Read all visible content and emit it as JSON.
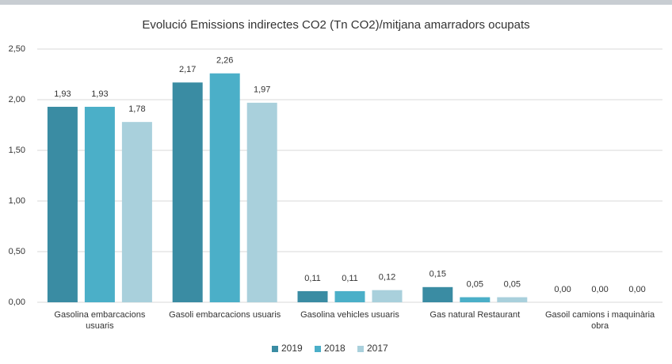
{
  "chart_data": {
    "type": "bar",
    "title": "Evolució Emissions indirectes CO2 (Tn CO2)/mitjana amarradors ocupats",
    "categories": [
      "Gasolina embarcacions usuaris",
      "Gasoli embarcacions usuaris",
      "Gasolina vehicles usuaris",
      "Gas natural Restaurant",
      "Gasoil camions i maquinària obra"
    ],
    "series": [
      {
        "name": "2019",
        "color": "#3a8ca3",
        "values": [
          1.93,
          2.17,
          0.11,
          0.15,
          0
        ],
        "value_labels": [
          "1,93",
          "2,17",
          "0,11",
          "0,15",
          "0,00"
        ]
      },
      {
        "name": "2018",
        "color": "#4bafc8",
        "values": [
          1.93,
          2.26,
          0.11,
          0.05,
          0
        ],
        "value_labels": [
          "1,93",
          "2,26",
          "0,11",
          "0,05",
          "0,00"
        ]
      },
      {
        "name": "2017",
        "color": "#a9d0dc",
        "values": [
          1.78,
          1.97,
          0.12,
          0.05,
          0
        ],
        "value_labels": [
          "1,78",
          "1,97",
          "0,12",
          "0,05",
          "0,00"
        ]
      }
    ],
    "ylim": [
      0,
      2.5
    ],
    "yticks": [
      {
        "value": 0,
        "label": "0,00"
      },
      {
        "value": 0.5,
        "label": "0,50"
      },
      {
        "value": 1,
        "label": "1,00"
      },
      {
        "value": 1.5,
        "label": "1,50"
      },
      {
        "value": 2,
        "label": "2,00"
      },
      {
        "value": 2.5,
        "label": "2,50"
      }
    ],
    "grid": true,
    "legend": "bottom"
  }
}
